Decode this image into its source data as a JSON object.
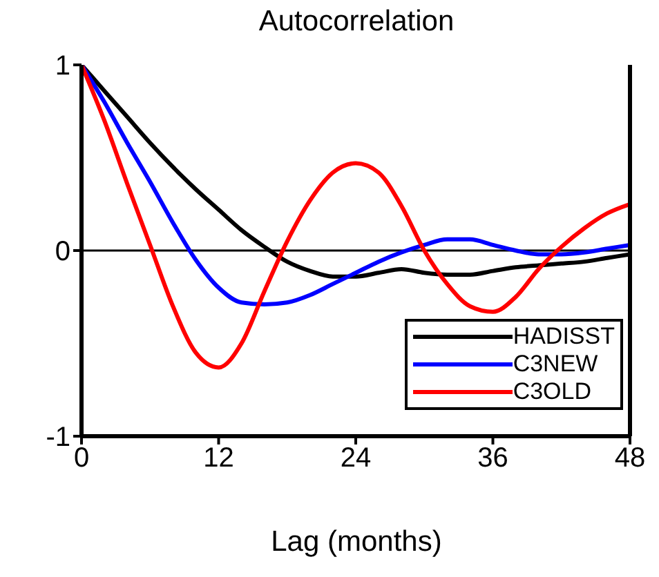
{
  "chart_data": {
    "type": "line",
    "title": "Autocorrelation",
    "xlabel": "Lag (months)",
    "x": [
      0,
      2,
      4,
      6,
      8,
      10,
      12,
      14,
      16,
      18,
      20,
      22,
      24,
      26,
      28,
      30,
      32,
      34,
      36,
      38,
      40,
      42,
      44,
      46,
      48
    ],
    "xlim": [
      0,
      48
    ],
    "xticks": [
      0,
      12,
      24,
      36,
      48
    ],
    "ylim": [
      -1,
      1
    ],
    "yticks": [
      -1,
      0,
      1
    ],
    "grid": false,
    "legend": "bottom right",
    "marker": "none",
    "line_style": "solid",
    "ref_lines": [
      {
        "axis": "y",
        "value": 0,
        "color": "#000000"
      }
    ],
    "series": [
      {
        "name": "HADISST",
        "color": "#000000",
        "values": [
          1,
          0.86,
          0.72,
          0.58,
          0.45,
          0.33,
          0.22,
          0.11,
          0.02,
          -0.06,
          -0.11,
          -0.14,
          -0.14,
          -0.12,
          -0.1,
          -0.12,
          -0.13,
          -0.13,
          -0.11,
          -0.09,
          -0.08,
          -0.07,
          -0.06,
          -0.04,
          -0.02
        ]
      },
      {
        "name": "C3NEW",
        "color": "#0000ff",
        "values": [
          1,
          0.8,
          0.58,
          0.37,
          0.15,
          -0.05,
          -0.2,
          -0.28,
          -0.29,
          -0.28,
          -0.24,
          -0.18,
          -0.12,
          -0.06,
          -0.01,
          0.03,
          0.06,
          0.06,
          0.03,
          0.0,
          -0.02,
          -0.02,
          -0.01,
          0.01,
          0.03
        ]
      },
      {
        "name": "C3OLD",
        "color": "#ff0000",
        "values": [
          1,
          0.7,
          0.36,
          0.03,
          -0.3,
          -0.55,
          -0.63,
          -0.5,
          -0.22,
          0.05,
          0.27,
          0.42,
          0.47,
          0.42,
          0.24,
          0.0,
          -0.18,
          -0.3,
          -0.33,
          -0.25,
          -0.1,
          0.02,
          0.12,
          0.2,
          0.25
        ]
      }
    ]
  }
}
